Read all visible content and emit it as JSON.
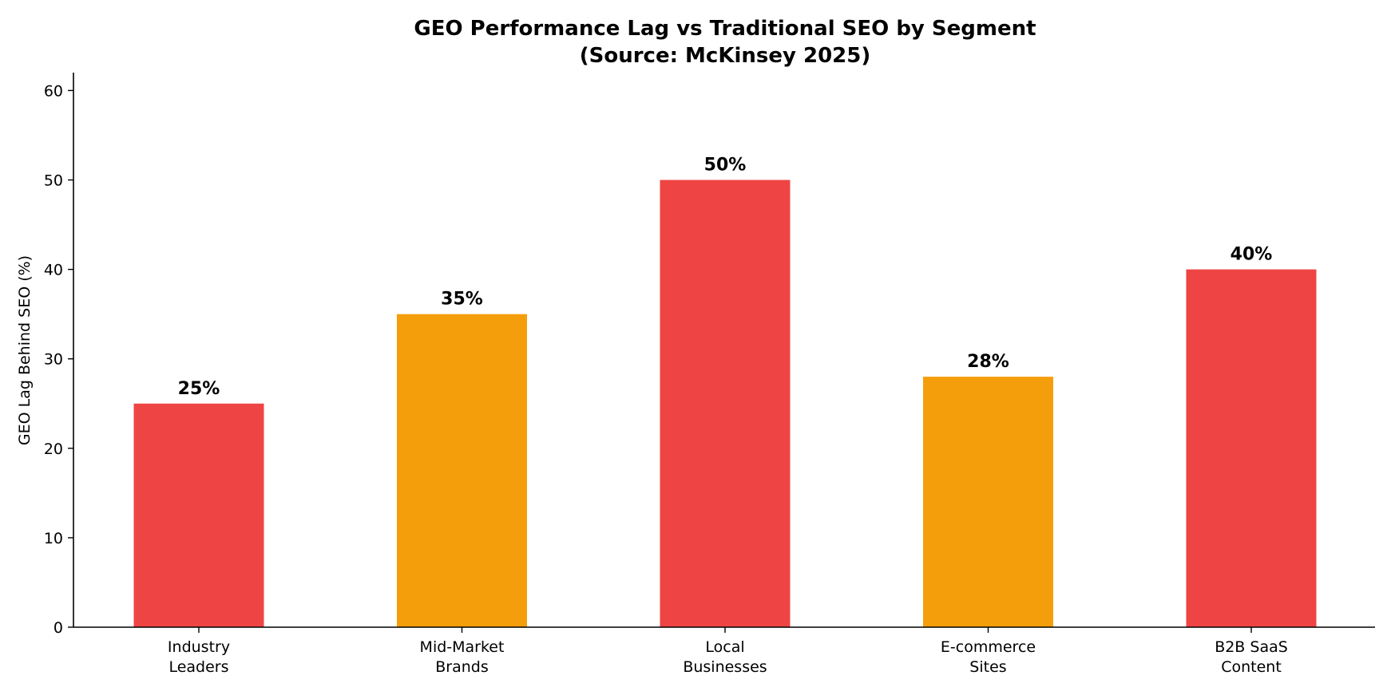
{
  "chart_data": {
    "type": "bar",
    "title": "GEO Performance Lag vs Traditional SEO by Segment",
    "subtitle": "(Source: McKinsey 2025)",
    "xlabel": "",
    "ylabel": "GEO Lag Behind SEO (%)",
    "ylim": [
      0,
      62
    ],
    "yticks": [
      0,
      10,
      20,
      30,
      40,
      50,
      60
    ],
    "grid": false,
    "legend": "none",
    "categories": [
      [
        "Industry",
        "Leaders"
      ],
      [
        "Mid-Market",
        "Brands"
      ],
      [
        "Local",
        "Businesses"
      ],
      [
        "E-commerce",
        "Sites"
      ],
      [
        "B2B SaaS",
        "Content"
      ]
    ],
    "values": [
      25,
      35,
      50,
      28,
      40
    ],
    "value_labels": [
      "25%",
      "35%",
      "50%",
      "28%",
      "40%"
    ],
    "colors": [
      "#ef4444",
      "#f59e0b",
      "#ef4444",
      "#f59e0b",
      "#ef4444"
    ]
  }
}
